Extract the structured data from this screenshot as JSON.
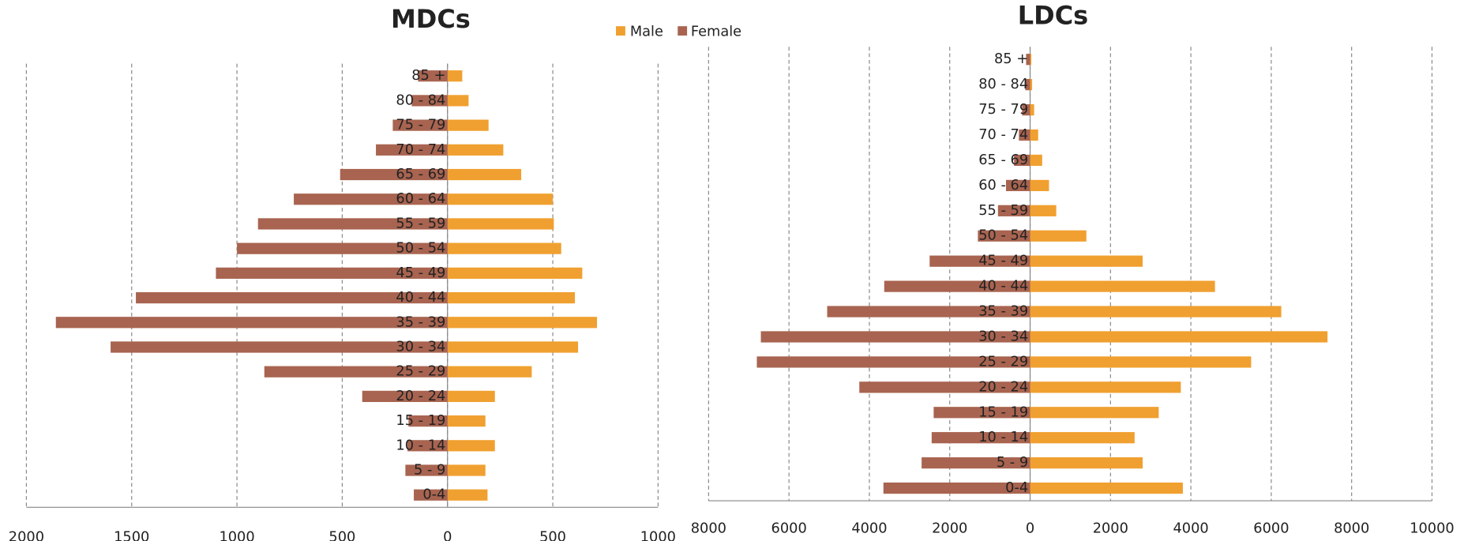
{
  "chart_data": [
    {
      "type": "bar",
      "orientation": "horizontal",
      "title": "MDCs",
      "categories": [
        "0-4",
        "5 - 9",
        "10 - 14",
        "15 - 19",
        "20 - 24",
        "25 - 29",
        "30 - 34",
        "35 - 39",
        "40 - 44",
        "45 - 49",
        "50 - 54",
        "55 - 59",
        "60 - 64",
        "65 - 69",
        "70 - 74",
        "75 - 79",
        "80 - 84",
        "85 +"
      ],
      "series": [
        {
          "name": "Male",
          "color": "#f0a030",
          "values": [
            190,
            180,
            225,
            180,
            225,
            400,
            620,
            710,
            605,
            640,
            540,
            505,
            500,
            350,
            265,
            195,
            100,
            70
          ]
        },
        {
          "name": "Female",
          "color": "#a86450",
          "values": [
            -160,
            -200,
            -190,
            -185,
            -405,
            -870,
            -1600,
            -1860,
            -1480,
            -1100,
            -1000,
            -900,
            -730,
            -510,
            -340,
            -260,
            -170,
            -140
          ]
        }
      ],
      "xlim": [
        -2000,
        1000
      ],
      "xticks": [
        {
          "value": -2000,
          "label": "2000"
        },
        {
          "value": -1500,
          "label": "1500"
        },
        {
          "value": -1000,
          "label": "1000"
        },
        {
          "value": -500,
          "label": "500"
        },
        0,
        500,
        1000
      ],
      "grid": true
    },
    {
      "type": "bar",
      "orientation": "horizontal",
      "title": "LDCs",
      "categories": [
        "0-4",
        "5 - 9",
        "10 - 14",
        "15 - 19",
        "20 - 24",
        "25 - 29",
        "30 - 34",
        "35 - 39",
        "40 - 44",
        "45 - 49",
        "50 - 54",
        "55 - 59",
        "60 - 64",
        "65 - 69",
        "70 - 74",
        "75 - 79",
        "80 - 84",
        "85 +"
      ],
      "series": [
        {
          "color": "#f0a030",
          "values": [
            3800,
            2800,
            2600,
            3200,
            3750,
            5500,
            7400,
            6250,
            4600,
            2800,
            1400,
            650,
            470,
            300,
            200,
            100,
            50,
            30
          ]
        },
        {
          "color": "#a86450",
          "values": [
            -3650,
            -2700,
            -2450,
            -2400,
            -4250,
            -6800,
            -6700,
            -5050,
            -3630,
            -2500,
            -1300,
            -800,
            -600,
            -400,
            -280,
            -200,
            -120,
            -100
          ]
        }
      ],
      "xlim": [
        -8000,
        10000
      ],
      "xticks": [
        {
          "value": -8000,
          "label": "8000"
        },
        {
          "value": -6000,
          "label": "6000"
        },
        {
          "value": -4000,
          "label": "4000"
        },
        {
          "value": -2000,
          "label": "2000"
        },
        0,
        2000,
        4000,
        6000,
        8000,
        10000
      ],
      "grid": true
    }
  ]
}
